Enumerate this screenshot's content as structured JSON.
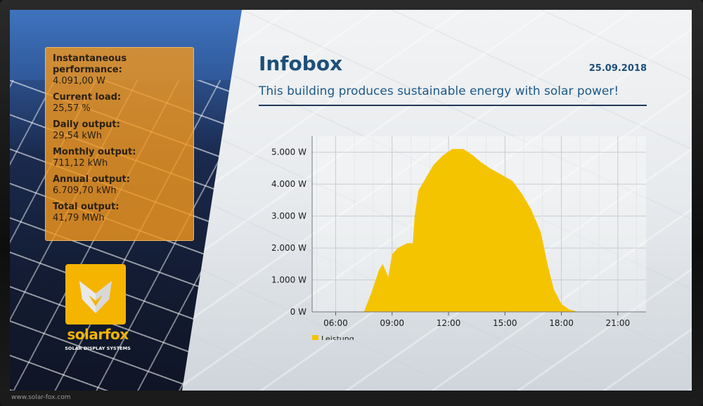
{
  "stats": [
    {
      "label": "Instantaneous performance:",
      "value": "4.091,00 W"
    },
    {
      "label": "Current load:",
      "value": "25,57 %"
    },
    {
      "label": "Daily output:",
      "value": "29,54 kWh"
    },
    {
      "label": "Monthly output:",
      "value": "711,12 kWh"
    },
    {
      "label": "Annual output:",
      "value": "6.709,70 kWh"
    },
    {
      "label": "Total output:",
      "value": "41,79 MWh"
    }
  ],
  "brand": {
    "name": "solarfox",
    "tagline": "SOLAR DISPLAY SYSTEMS",
    "url": "www.solar-fox.com",
    "color": "#f5b400"
  },
  "header": {
    "title": "Infobox",
    "date": "25.09.2018",
    "subtitle": "This building produces sustainable energy with solar power!"
  },
  "chart_data": {
    "type": "area",
    "x_ticks": [
      "06:00",
      "09:00",
      "12:00",
      "15:00",
      "18:00",
      "21:00"
    ],
    "y_ticks": [
      "0 W",
      "1.000 W",
      "2.000 W",
      "3.000 W",
      "4.000 W",
      "5.000 W"
    ],
    "xlim": [
      4.75,
      22.5
    ],
    "ylim": [
      0,
      5500
    ],
    "series": [
      {
        "name": "Leistung",
        "color": "#f5c400",
        "x": [
          7.5,
          7.9,
          8.3,
          8.5,
          8.8,
          9.0,
          9.3,
          9.8,
          10.1,
          10.2,
          10.4,
          10.7,
          11.2,
          11.7,
          12.2,
          12.8,
          13.3,
          13.7,
          14.2,
          14.8,
          15.4,
          15.9,
          16.4,
          16.9,
          17.3,
          17.6,
          18.0,
          18.4,
          18.9,
          19.3
        ],
        "y": [
          0,
          600,
          1300,
          1500,
          1100,
          1800,
          2000,
          2150,
          2150,
          3000,
          3800,
          4100,
          4600,
          4900,
          5100,
          5100,
          4900,
          4700,
          4500,
          4300,
          4100,
          3700,
          3200,
          2500,
          1400,
          700,
          250,
          80,
          0,
          0
        ]
      }
    ],
    "legend": "bottom-left",
    "grid": true
  }
}
